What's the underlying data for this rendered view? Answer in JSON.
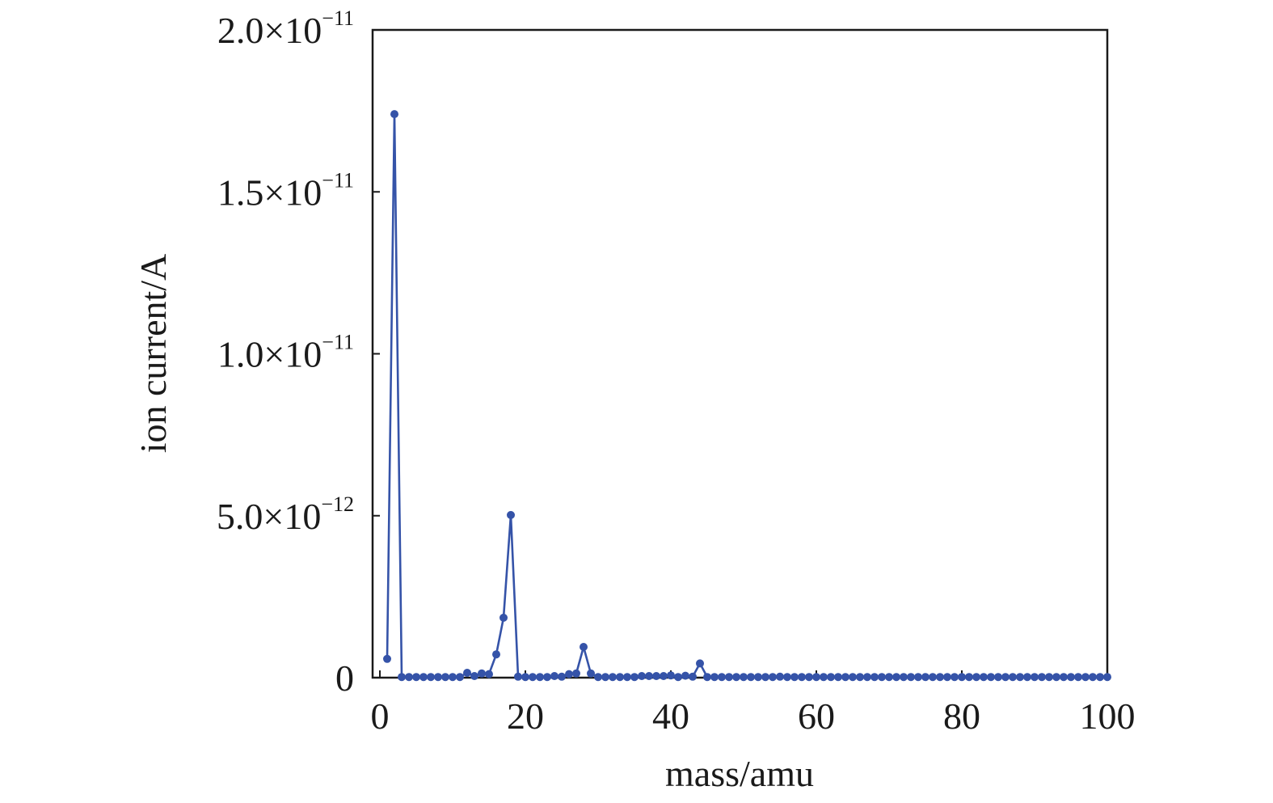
{
  "chart_data": {
    "type": "line",
    "xlabel": "mass/amu",
    "ylabel": "ion current/A",
    "xlim": [
      -1,
      100
    ],
    "ylim": [
      0,
      2e-11
    ],
    "grid": false,
    "legend": "none",
    "line_color": "#3553a8",
    "x_ticks": [
      {
        "value": 0,
        "label": "0"
      },
      {
        "value": 20,
        "label": "20"
      },
      {
        "value": 40,
        "label": "40"
      },
      {
        "value": 60,
        "label": "60"
      },
      {
        "value": 80,
        "label": "80"
      },
      {
        "value": 100,
        "label": "100"
      }
    ],
    "y_ticks": [
      {
        "value": 0,
        "mantissa": "0",
        "exponent": ""
      },
      {
        "value": 5e-12,
        "mantissa": "5.0×10",
        "exponent": "−12"
      },
      {
        "value": 1e-11,
        "mantissa": "1.0×10",
        "exponent": "−11"
      },
      {
        "value": 1.5e-11,
        "mantissa": "1.5×10",
        "exponent": "−11"
      },
      {
        "value": 2e-11,
        "mantissa": "2.0×10",
        "exponent": "−11"
      }
    ],
    "series": [
      {
        "x": [
          1,
          2,
          3,
          4,
          5,
          6,
          7,
          8,
          9,
          10,
          11,
          12,
          13,
          14,
          15,
          16,
          17,
          18,
          19,
          20,
          21,
          22,
          23,
          24,
          25,
          26,
          27,
          28,
          29,
          30,
          31,
          32,
          33,
          34,
          35,
          36,
          37,
          38,
          39,
          40,
          41,
          42,
          43,
          44,
          45,
          46,
          47,
          48,
          49,
          50,
          51,
          52,
          53,
          54,
          55,
          56,
          57,
          58,
          59,
          60,
          61,
          62,
          63,
          64,
          65,
          66,
          67,
          68,
          69,
          70,
          71,
          72,
          73,
          74,
          75,
          76,
          77,
          78,
          79,
          80,
          81,
          82,
          83,
          84,
          85,
          86,
          87,
          88,
          89,
          90,
          91,
          92,
          93,
          94,
          95,
          96,
          97,
          98,
          99,
          100
        ],
        "y": [
          5.8e-13,
          1.74e-11,
          2e-14,
          2e-14,
          2e-14,
          2e-14,
          2e-14,
          2e-14,
          2e-14,
          2e-14,
          2e-14,
          1.5e-13,
          5e-14,
          1.3e-13,
          1.1e-13,
          7.2e-13,
          1.85e-12,
          5.02e-12,
          3e-14,
          2e-14,
          2e-14,
          2e-14,
          2e-14,
          5e-14,
          3e-14,
          1.1e-13,
          1.3e-13,
          9.5e-13,
          1.3e-13,
          2e-14,
          2e-14,
          2e-14,
          2e-14,
          2e-14,
          2e-14,
          5e-14,
          5e-14,
          5e-14,
          5e-14,
          7e-14,
          2e-14,
          6e-14,
          3e-14,
          4.4e-13,
          2e-14,
          2e-14,
          2e-14,
          2e-14,
          2e-14,
          2e-14,
          2e-14,
          2e-14,
          2e-14,
          2e-14,
          3e-14,
          2e-14,
          2e-14,
          2e-14,
          2e-14,
          2e-14,
          2e-14,
          2e-14,
          2e-14,
          2e-14,
          2e-14,
          2e-14,
          2e-14,
          2e-14,
          2e-14,
          2e-14,
          2e-14,
          2e-14,
          2e-14,
          2e-14,
          2e-14,
          2e-14,
          2e-14,
          2e-14,
          2e-14,
          2e-14,
          2e-14,
          2e-14,
          2e-14,
          2e-14,
          2e-14,
          2e-14,
          2e-14,
          2e-14,
          2e-14,
          2e-14,
          2e-14,
          2e-14,
          2e-14,
          2e-14,
          2e-14,
          2e-14,
          2e-14,
          2e-14,
          2e-14,
          2e-14
        ]
      }
    ]
  }
}
